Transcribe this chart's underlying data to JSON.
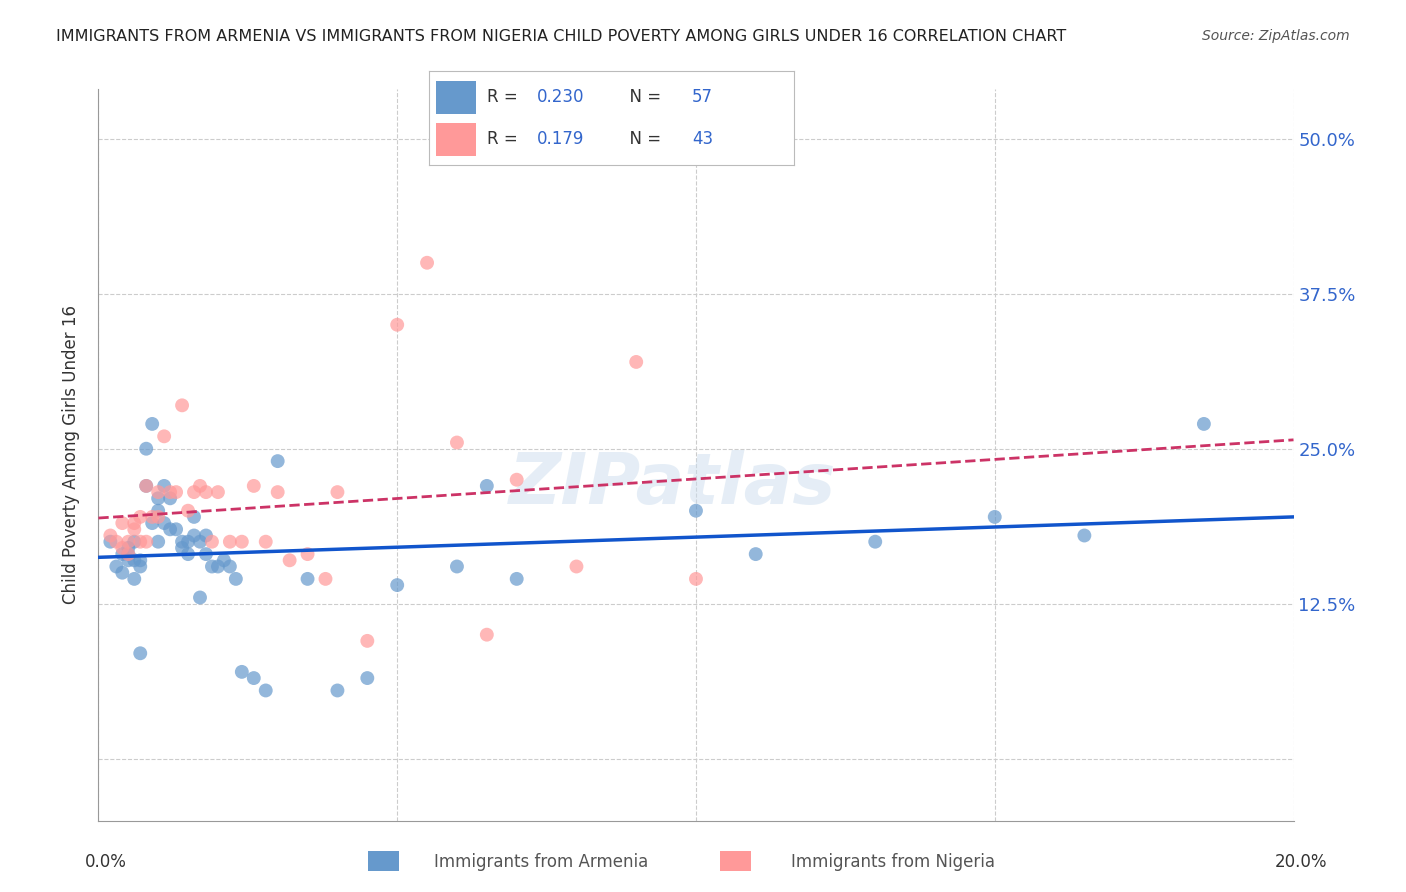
{
  "title": "IMMIGRANTS FROM ARMENIA VS IMMIGRANTS FROM NIGERIA CHILD POVERTY AMONG GIRLS UNDER 16 CORRELATION CHART",
  "source": "Source: ZipAtlas.com",
  "ylabel": "Child Poverty Among Girls Under 16",
  "y_ticks": [
    0.0,
    0.125,
    0.25,
    0.375,
    0.5
  ],
  "y_tick_labels": [
    "",
    "12.5%",
    "25.0%",
    "37.5%",
    "50.0%"
  ],
  "x_lim": [
    0.0,
    0.2
  ],
  "y_lim": [
    -0.05,
    0.54
  ],
  "armenia_R": "0.230",
  "armenia_N": "57",
  "nigeria_R": "0.179",
  "nigeria_N": "43",
  "armenia_color": "#6699CC",
  "nigeria_color": "#FF9999",
  "armenia_line_color": "#1155CC",
  "nigeria_line_color": "#CC3366",
  "legend_label_armenia": "Immigrants from Armenia",
  "legend_label_nigeria": "Immigrants from Nigeria",
  "watermark": "ZIPatlas",
  "armenia_x": [
    0.002,
    0.003,
    0.004,
    0.004,
    0.005,
    0.005,
    0.005,
    0.006,
    0.006,
    0.006,
    0.007,
    0.007,
    0.007,
    0.008,
    0.008,
    0.009,
    0.009,
    0.01,
    0.01,
    0.01,
    0.011,
    0.011,
    0.012,
    0.012,
    0.013,
    0.014,
    0.014,
    0.015,
    0.015,
    0.016,
    0.016,
    0.017,
    0.017,
    0.018,
    0.018,
    0.019,
    0.02,
    0.021,
    0.022,
    0.023,
    0.024,
    0.026,
    0.028,
    0.03,
    0.035,
    0.04,
    0.045,
    0.05,
    0.06,
    0.065,
    0.07,
    0.1,
    0.11,
    0.13,
    0.15,
    0.165,
    0.185
  ],
  "armenia_y": [
    0.175,
    0.155,
    0.165,
    0.15,
    0.17,
    0.165,
    0.16,
    0.175,
    0.16,
    0.145,
    0.16,
    0.155,
    0.085,
    0.25,
    0.22,
    0.27,
    0.19,
    0.21,
    0.2,
    0.175,
    0.22,
    0.19,
    0.21,
    0.185,
    0.185,
    0.175,
    0.17,
    0.175,
    0.165,
    0.195,
    0.18,
    0.175,
    0.13,
    0.165,
    0.18,
    0.155,
    0.155,
    0.16,
    0.155,
    0.145,
    0.07,
    0.065,
    0.055,
    0.24,
    0.145,
    0.055,
    0.065,
    0.14,
    0.155,
    0.22,
    0.145,
    0.2,
    0.165,
    0.175,
    0.195,
    0.18,
    0.27
  ],
  "nigeria_x": [
    0.002,
    0.003,
    0.004,
    0.004,
    0.005,
    0.005,
    0.006,
    0.006,
    0.007,
    0.007,
    0.008,
    0.008,
    0.009,
    0.01,
    0.01,
    0.011,
    0.012,
    0.013,
    0.014,
    0.015,
    0.016,
    0.017,
    0.018,
    0.019,
    0.02,
    0.022,
    0.024,
    0.026,
    0.028,
    0.03,
    0.032,
    0.035,
    0.038,
    0.04,
    0.045,
    0.05,
    0.055,
    0.06,
    0.065,
    0.07,
    0.08,
    0.09,
    0.1
  ],
  "nigeria_y": [
    0.18,
    0.175,
    0.17,
    0.19,
    0.165,
    0.175,
    0.185,
    0.19,
    0.195,
    0.175,
    0.22,
    0.175,
    0.195,
    0.215,
    0.195,
    0.26,
    0.215,
    0.215,
    0.285,
    0.2,
    0.215,
    0.22,
    0.215,
    0.175,
    0.215,
    0.175,
    0.175,
    0.22,
    0.175,
    0.215,
    0.16,
    0.165,
    0.145,
    0.215,
    0.095,
    0.35,
    0.4,
    0.255,
    0.1,
    0.225,
    0.155,
    0.32,
    0.145
  ]
}
